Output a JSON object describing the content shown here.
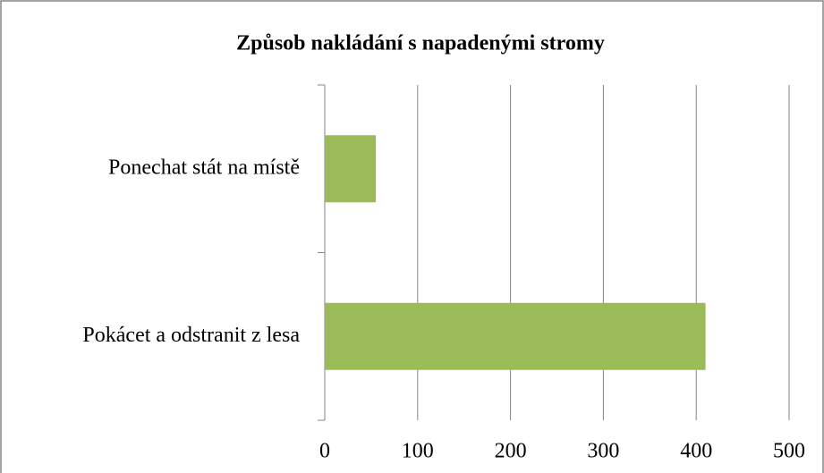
{
  "chart_data": {
    "type": "bar",
    "orientation": "horizontal",
    "title": "Způsob nakládání s napadenými stromy",
    "categories": [
      "Ponechat stát na místě",
      "Pokácet a odstranit z lesa"
    ],
    "values": [
      55,
      410
    ],
    "color": "#9bbb59",
    "xlim": [
      0,
      500
    ],
    "xticks": [
      0,
      100,
      200,
      300,
      400,
      500
    ],
    "grid": true
  }
}
